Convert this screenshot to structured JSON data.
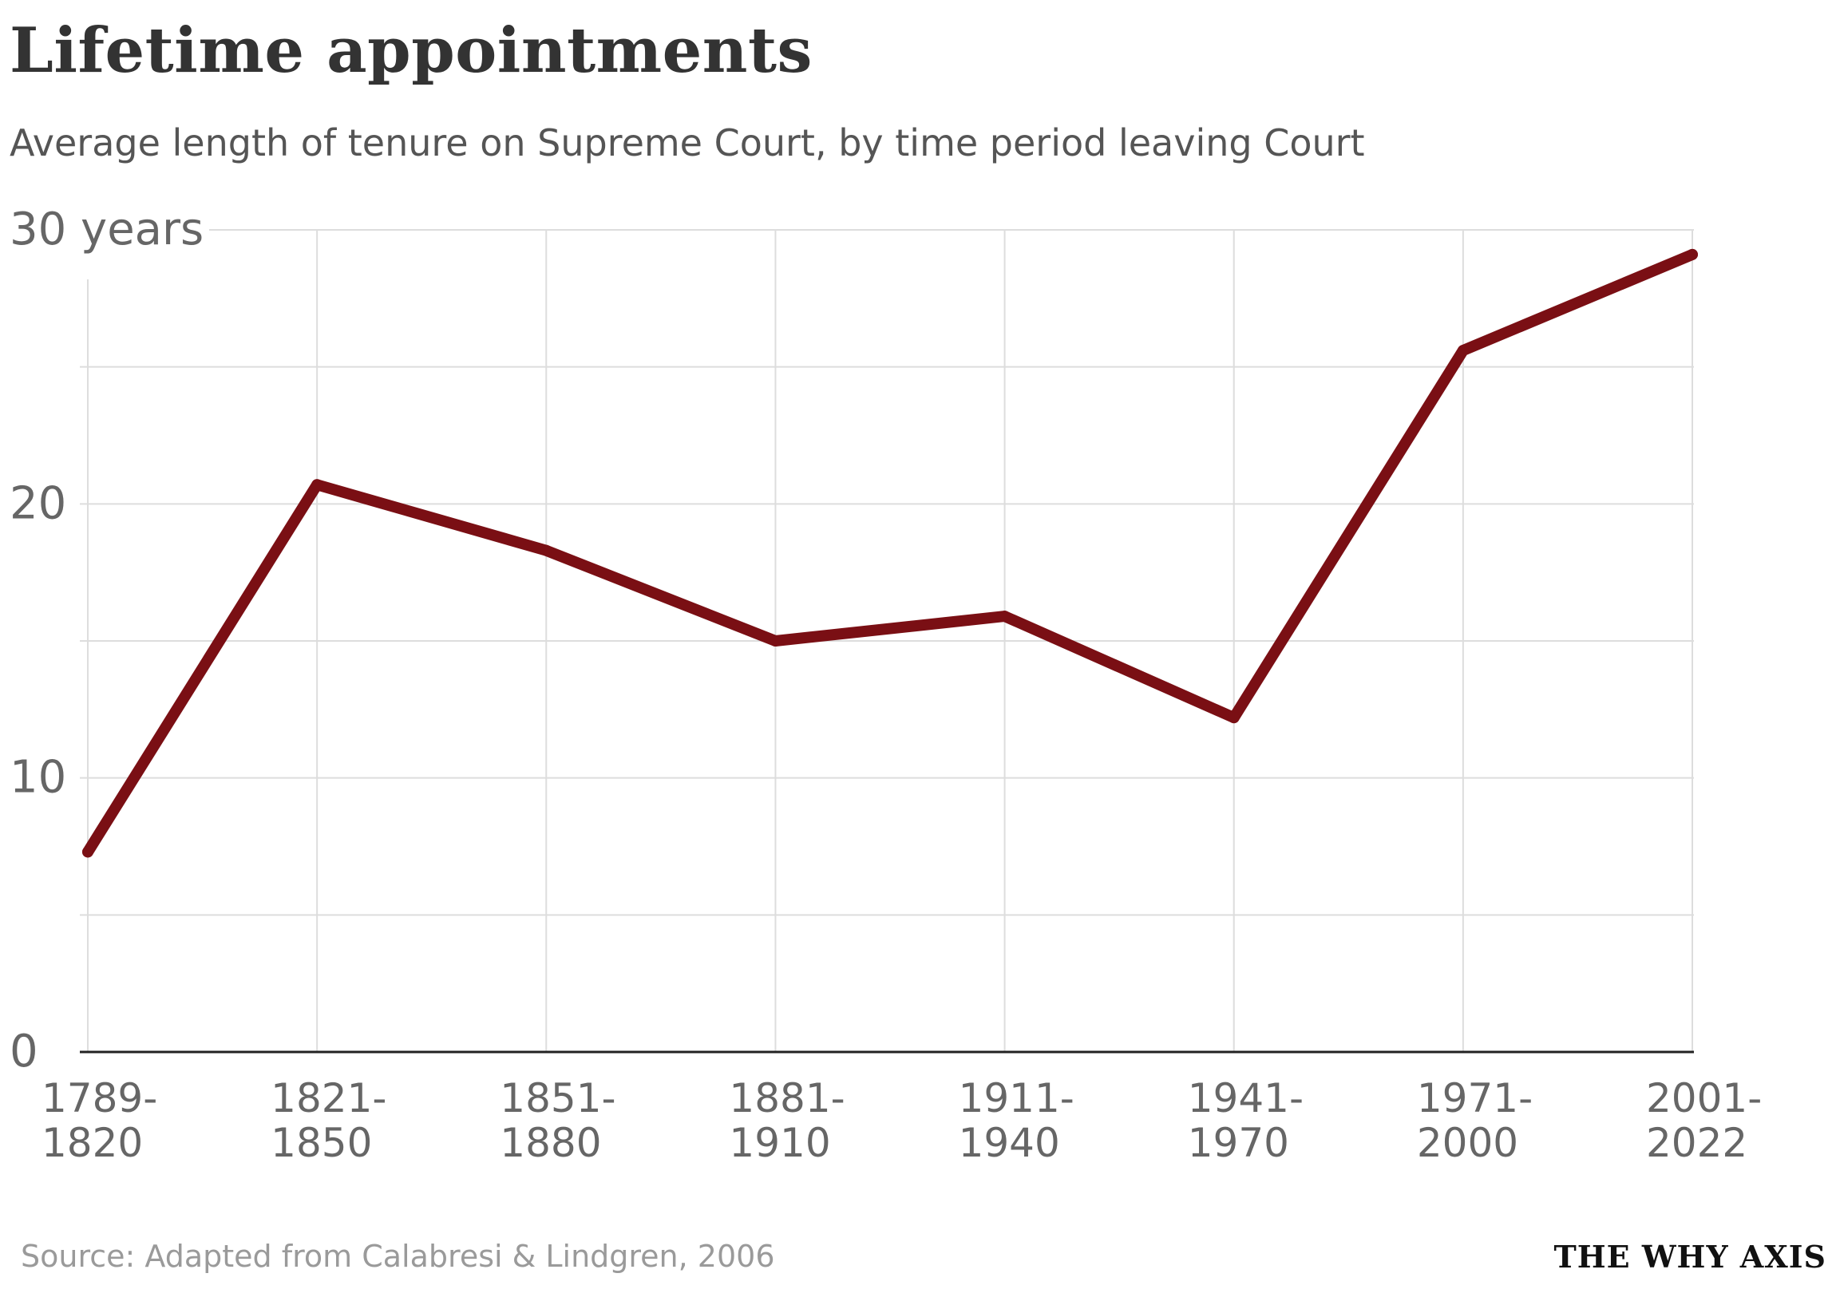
{
  "header": {
    "title": "Lifetime appointments",
    "subtitle": "Average length of tenure on Supreme Court, by time period leaving Court"
  },
  "footer": {
    "source": "Source: Adapted from Calabresi & Lindgren, 2006",
    "brand": "THE WHY AXIS"
  },
  "colors": {
    "line": "#7a0f14",
    "grid": "#dddddd",
    "axis": "#222222",
    "tick_text": "#666666"
  },
  "chart_data": {
    "type": "line",
    "categories": [
      [
        "1789-",
        "1820"
      ],
      [
        "1821-",
        "1850"
      ],
      [
        "1851-",
        "1880"
      ],
      [
        "1881-",
        "1910"
      ],
      [
        "1911-",
        "1940"
      ],
      [
        "1941-",
        "1970"
      ],
      [
        "1971-",
        "2000"
      ],
      [
        "2001-",
        "2022"
      ]
    ],
    "values": [
      7.3,
      20.7,
      18.3,
      15.0,
      15.9,
      12.2,
      25.6,
      29.1
    ],
    "ylim": [
      0,
      30
    ],
    "y_ticks": [
      0,
      10,
      20,
      30
    ],
    "y_tick_labels": [
      "0",
      "10",
      "20",
      "30 years"
    ],
    "y_gridlines": [
      0,
      5,
      10,
      15,
      20,
      25,
      30
    ],
    "grid": true,
    "legend": "none"
  }
}
